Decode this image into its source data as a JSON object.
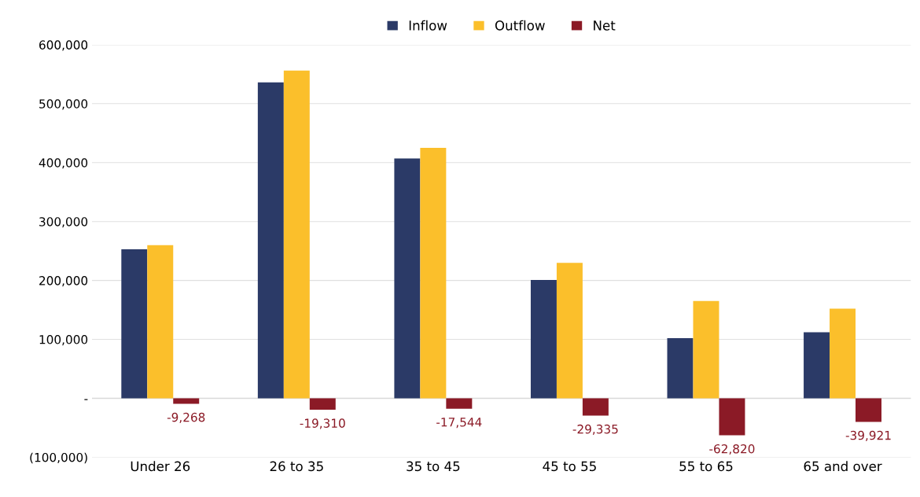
{
  "chart_data": {
    "type": "bar",
    "categories": [
      "Under 26",
      "26 to 35",
      "35 to 45",
      "45 to 55",
      "55 to 65",
      "65 and over"
    ],
    "series": [
      {
        "name": "Inflow",
        "color": "#2b3a67",
        "values": [
          253000,
          536000,
          407000,
          201000,
          102000,
          112000
        ]
      },
      {
        "name": "Outflow",
        "color": "#fbbf2b",
        "values": [
          260000,
          556000,
          425000,
          230000,
          165000,
          152000
        ]
      },
      {
        "name": "Net",
        "color": "#8b1a26",
        "values": [
          -9268,
          -19310,
          -17544,
          -29335,
          -62820,
          -39921
        ],
        "value_labels": [
          "-9,268",
          "-19,310",
          "-17,544",
          "-29,335",
          "-62,820",
          "-39,921"
        ]
      }
    ],
    "ylim": [
      -100000,
      600000
    ],
    "yticks": [
      {
        "value": -100000,
        "label": "(100,000)"
      },
      {
        "value": 0,
        "label": "-"
      },
      {
        "value": 100000,
        "label": "100,000"
      },
      {
        "value": 200000,
        "label": "200,000"
      },
      {
        "value": 300000,
        "label": "300,000"
      },
      {
        "value": 400000,
        "label": "400,000"
      },
      {
        "value": 500000,
        "label": "500,000"
      },
      {
        "value": 600000,
        "label": "600,000"
      }
    ],
    "grid": "y",
    "legend": "top"
  }
}
